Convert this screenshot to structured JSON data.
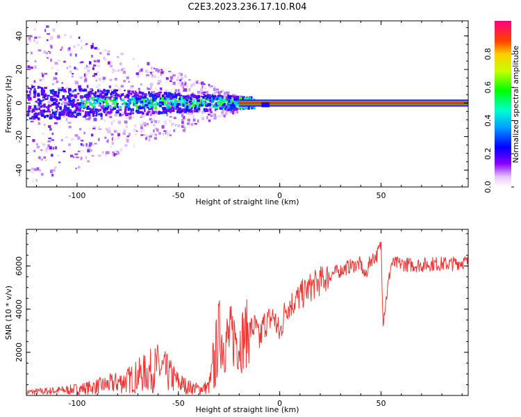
{
  "title": "C2E3.2023.236.17.10.R04",
  "chart_data": [
    {
      "type": "heatmap",
      "xlabel": "Height of straight line (km)",
      "ylabel": "Frequency (Hz)",
      "xlim": [
        -125,
        93
      ],
      "ylim": [
        -50,
        49
      ],
      "xticks": [
        "-100",
        "-50",
        "0",
        "50"
      ],
      "yticks": [
        "-40",
        "-20",
        "0",
        "20",
        "40"
      ],
      "colorbar": {
        "label": "Normalized spectral amplitude",
        "ticks": [
          "0.0",
          "0.2",
          "0.4",
          "0.6",
          "0.8"
        ],
        "range": [
          0,
          1
        ]
      },
      "description_ridge": {
        "note": "strong narrow ridge at ~0 Hz from about -20 km to 93 km; broad scattered noise below -20 km",
        "ridge_freq_hz": 0
      }
    },
    {
      "type": "line",
      "xlabel": "Height of straight line (km)",
      "ylabel": "SNR (10 * v/v)",
      "xlim": [
        -125,
        93
      ],
      "ylim": [
        0,
        7700
      ],
      "xticks": [
        "-100",
        "-50",
        "0",
        "50"
      ],
      "yticks": [
        "2000",
        "4000",
        "6000"
      ],
      "series": [
        {
          "color": "#ee3333",
          "x": [
            -125,
            -115,
            -105,
            -100,
            -95,
            -90,
            -85,
            -80,
            -75,
            -70,
            -65,
            -60,
            -55,
            -50,
            -45,
            -40,
            -35,
            -32,
            -30,
            -28,
            -25,
            -22,
            -20,
            -18,
            -15,
            -12,
            -10,
            -8,
            -5,
            -3,
            0,
            3,
            5,
            10,
            15,
            20,
            25,
            30,
            35,
            40,
            42,
            45,
            48,
            50,
            51,
            55,
            60,
            65,
            70,
            75,
            80,
            85,
            90,
            93
          ],
          "y": [
            150,
            200,
            250,
            300,
            350,
            420,
            500,
            600,
            700,
            900,
            1100,
            1300,
            1000,
            600,
            400,
            300,
            400,
            1500,
            3000,
            2500,
            2600,
            2800,
            2500,
            2700,
            3000,
            3200,
            2500,
            3300,
            3500,
            3700,
            2800,
            4100,
            4200,
            4600,
            5000,
            5300,
            5600,
            5800,
            6000,
            6100,
            5500,
            6300,
            6500,
            7000,
            3500,
            6100,
            6100,
            6050,
            6050,
            6100,
            6100,
            6100,
            6200,
            6150
          ]
        }
      ]
    }
  ]
}
